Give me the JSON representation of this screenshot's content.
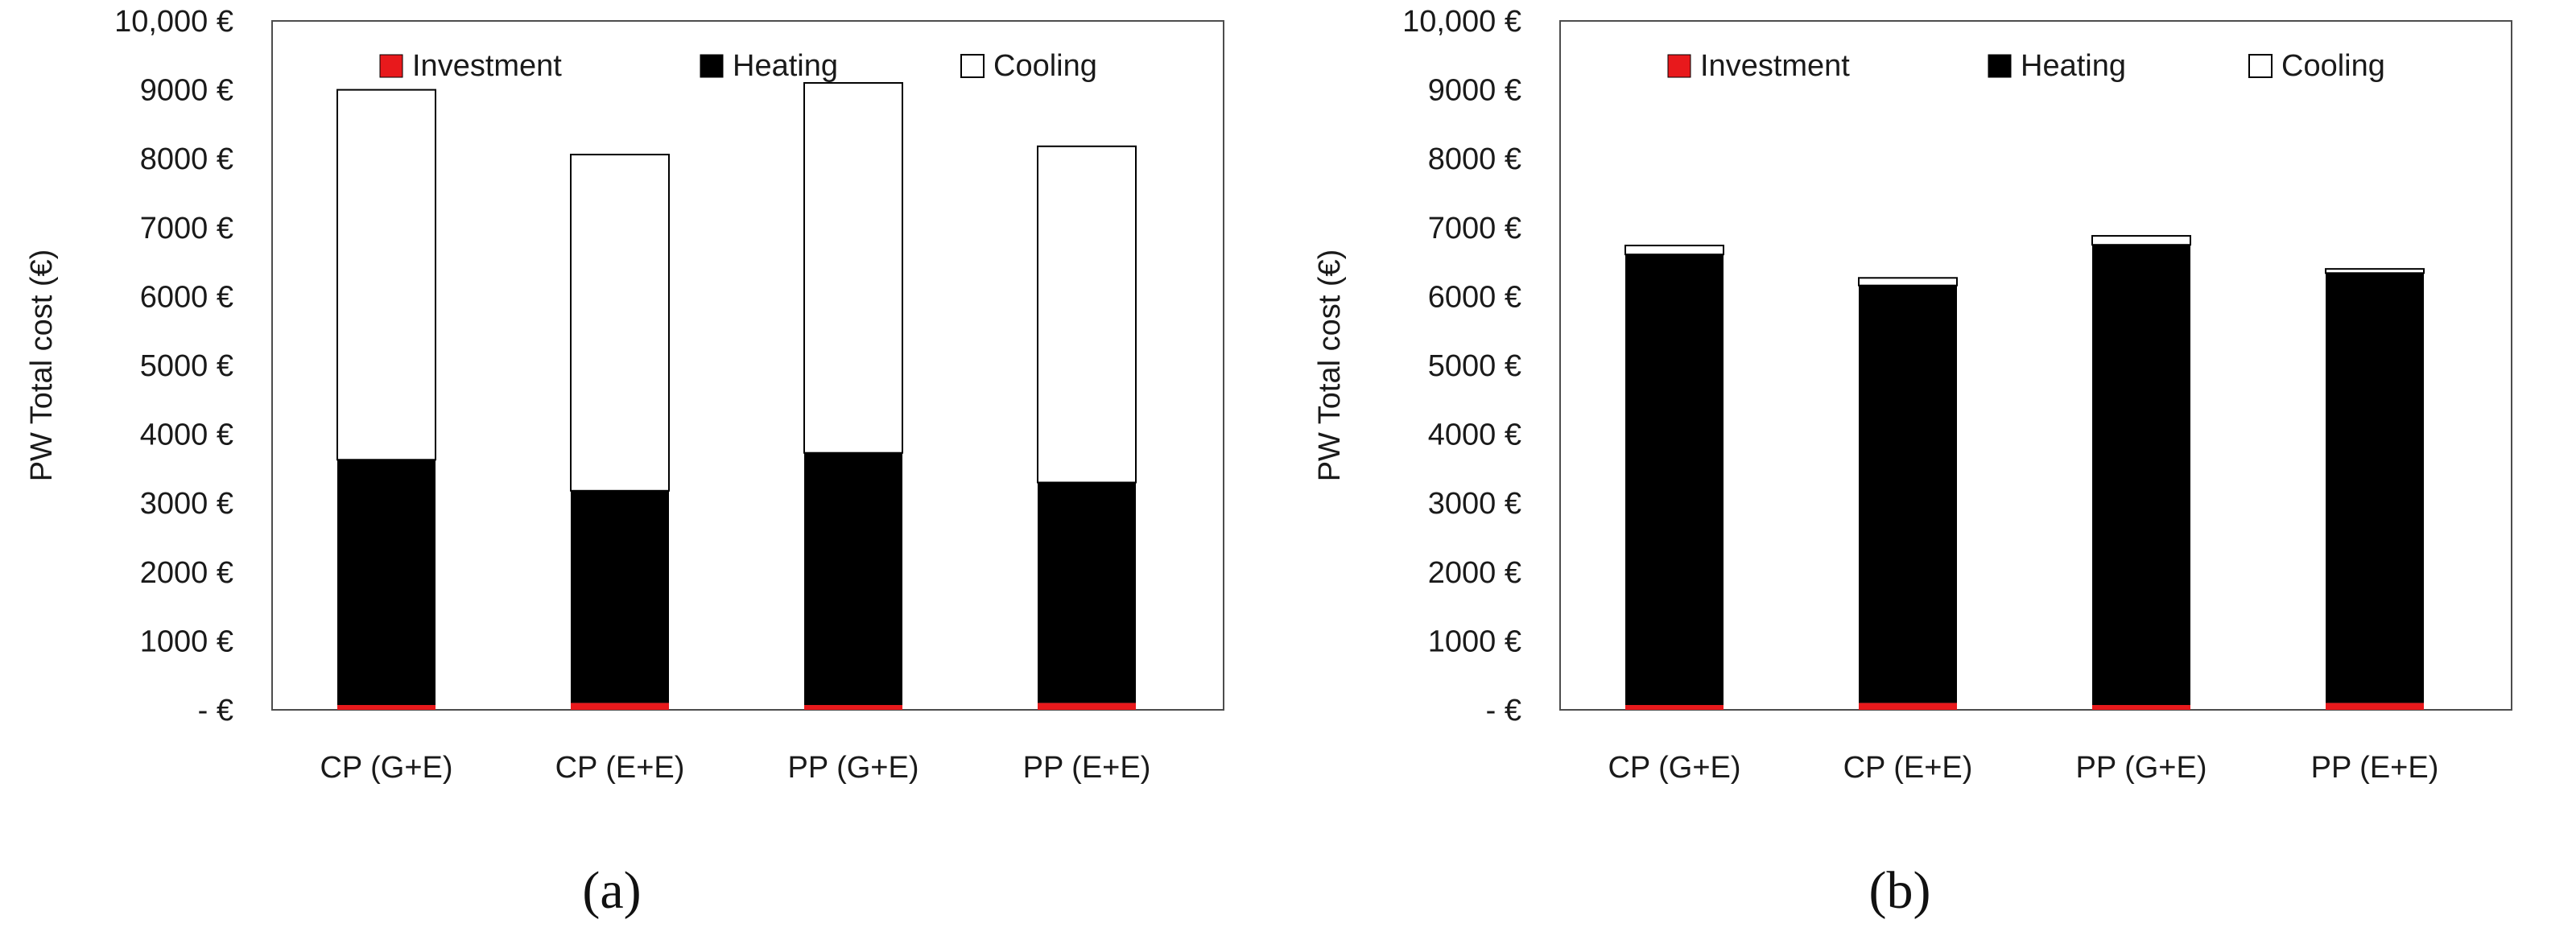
{
  "chart_data": [
    {
      "id": "a",
      "type": "stacked-bar",
      "caption": "(a)",
      "ylabel": "PW Total cost (€)",
      "xlabel": "",
      "ylim": [
        0,
        10000
      ],
      "ytick_labels": [
        "- €",
        "1000 €",
        "2000 €",
        "3000 €",
        "4000 €",
        "5000 €",
        "6000 €",
        "7000 €",
        "8000 €",
        "9000 €",
        "10,000 €"
      ],
      "categories": [
        "CP (G+E)",
        "CP (E+E)",
        "PP (G+E)",
        "PP (E+E)"
      ],
      "legend_position": "top",
      "series": [
        {
          "name": "Investment",
          "color": "#e8191c",
          "values": [
            70,
            100,
            70,
            100
          ]
        },
        {
          "name": "Heating",
          "color": "#000000",
          "values": [
            3560,
            3080,
            3660,
            3200
          ]
        },
        {
          "name": "Cooling",
          "color": "#ffffff",
          "values": [
            5370,
            4880,
            5370,
            4880
          ]
        }
      ]
    },
    {
      "id": "b",
      "type": "stacked-bar",
      "caption": "(b)",
      "ylabel": "PW Total cost (€)",
      "xlabel": "",
      "ylim": [
        0,
        10000
      ],
      "ytick_labels": [
        "- €",
        "1000 €",
        "2000 €",
        "3000 €",
        "4000 €",
        "5000 €",
        "6000 €",
        "7000 €",
        "8000 €",
        "9000 €",
        "10,000 €"
      ],
      "categories": [
        "CP (G+E)",
        "CP (E+E)",
        "PP (G+E)",
        "PP (E+E)"
      ],
      "legend_position": "top",
      "series": [
        {
          "name": "Investment",
          "color": "#e8191c",
          "values": [
            70,
            100,
            70,
            100
          ]
        },
        {
          "name": "Heating",
          "color": "#000000",
          "values": [
            6540,
            6060,
            6680,
            6240
          ]
        },
        {
          "name": "Cooling",
          "color": "#ffffff",
          "values": [
            130,
            110,
            130,
            60
          ]
        }
      ]
    }
  ]
}
